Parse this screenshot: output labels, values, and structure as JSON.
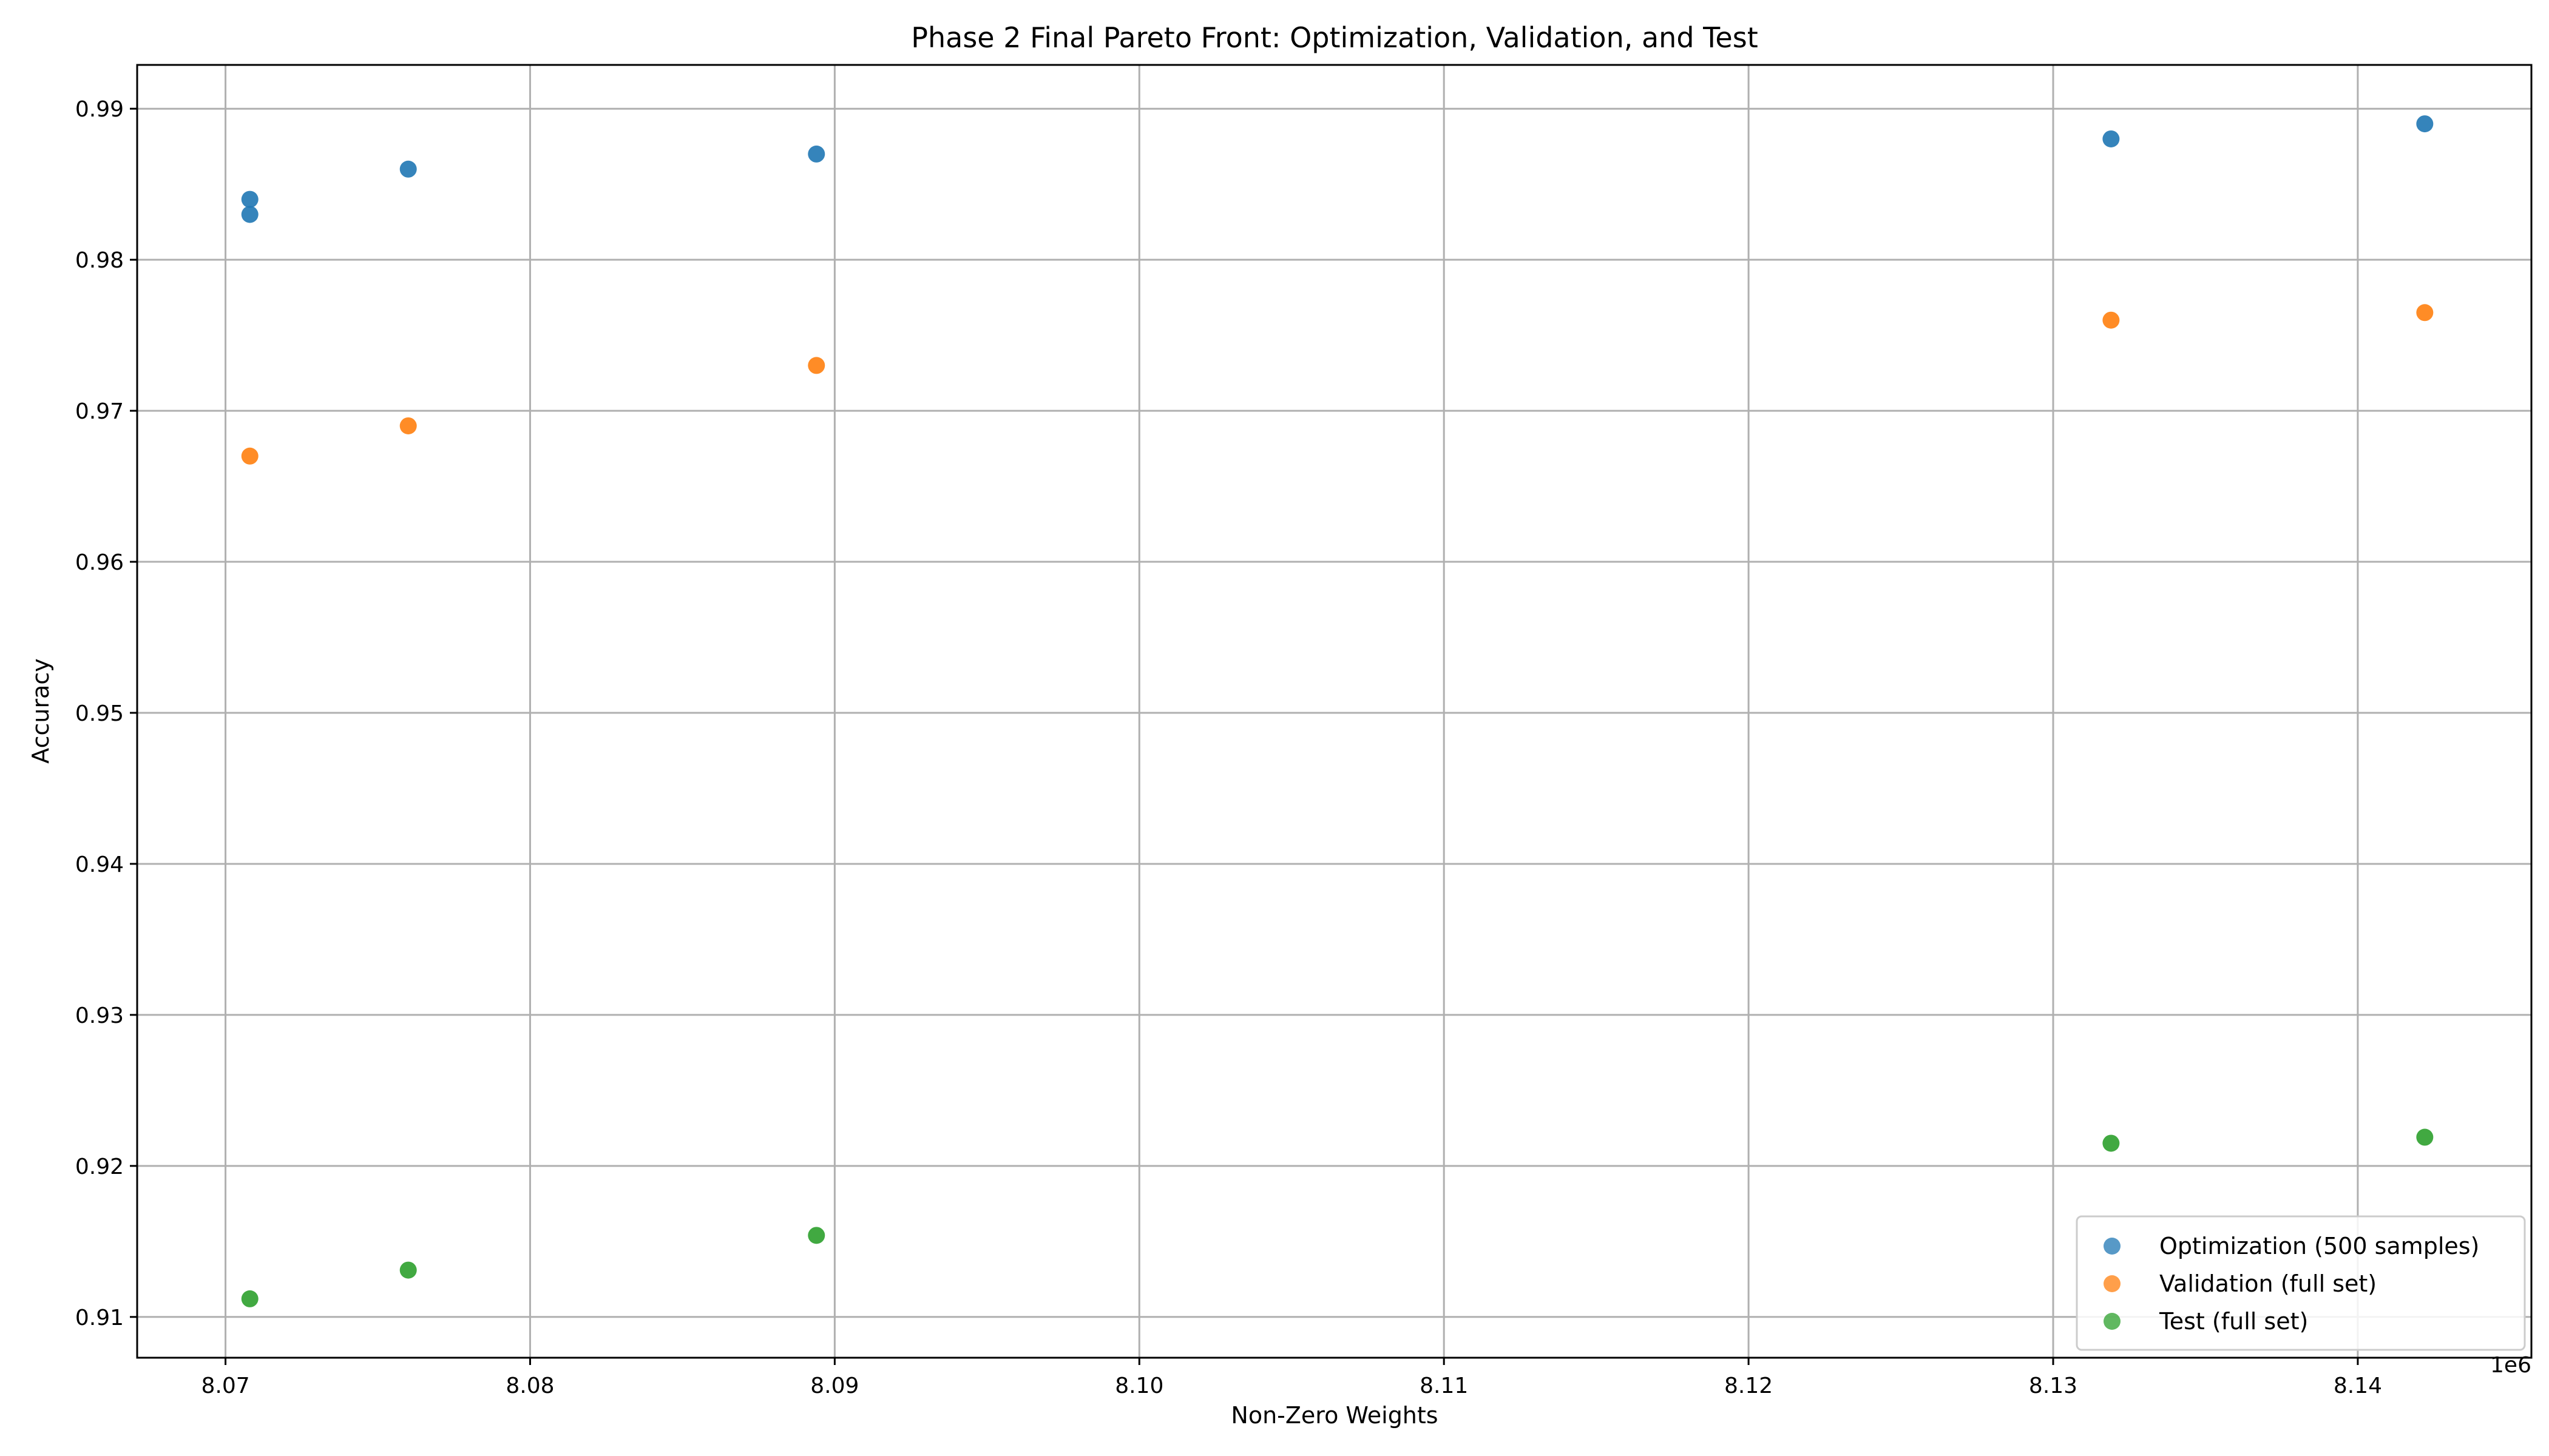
{
  "chart_data": {
    "type": "scatter",
    "title": "Phase 2 Final Pareto Front: Optimization, Validation, and Test",
    "xlabel": "Non-Zero Weights",
    "ylabel": "Accuracy",
    "x_offset_label": "1e6",
    "xlim": [
      8.0671,
      8.1457
    ],
    "ylim": [
      0.9073,
      0.9929
    ],
    "x_ticks": [
      8.07,
      8.08,
      8.09,
      8.1,
      8.11,
      8.12,
      8.13,
      8.14
    ],
    "x_tick_labels": [
      "8.07",
      "8.08",
      "8.09",
      "8.10",
      "8.11",
      "8.12",
      "8.13",
      "8.14"
    ],
    "y_ticks": [
      0.91,
      0.92,
      0.93,
      0.94,
      0.95,
      0.96,
      0.97,
      0.98,
      0.99
    ],
    "y_tick_labels": [
      "0.91",
      "0.92",
      "0.93",
      "0.94",
      "0.95",
      "0.96",
      "0.97",
      "0.98",
      "0.99"
    ],
    "grid": true,
    "legend_position": "bottom-right",
    "series": [
      {
        "name": "Optimization (500 samples)",
        "color": "#1f77b4",
        "points": [
          {
            "x": 8.0708,
            "y": 0.984
          },
          {
            "x": 8.0708,
            "y": 0.983
          },
          {
            "x": 8.076,
            "y": 0.986
          },
          {
            "x": 8.0894,
            "y": 0.987
          },
          {
            "x": 8.1319,
            "y": 0.988
          },
          {
            "x": 8.1422,
            "y": 0.989
          }
        ]
      },
      {
        "name": "Validation (full set)",
        "color": "#ff7f0e",
        "points": [
          {
            "x": 8.0708,
            "y": 0.967
          },
          {
            "x": 8.076,
            "y": 0.969
          },
          {
            "x": 8.0894,
            "y": 0.973
          },
          {
            "x": 8.1319,
            "y": 0.976
          },
          {
            "x": 8.1422,
            "y": 0.9765
          }
        ]
      },
      {
        "name": "Test (full set)",
        "color": "#2ca02c",
        "points": [
          {
            "x": 8.0708,
            "y": 0.9112
          },
          {
            "x": 8.076,
            "y": 0.9131
          },
          {
            "x": 8.0894,
            "y": 0.9154
          },
          {
            "x": 8.1319,
            "y": 0.9215
          },
          {
            "x": 8.1422,
            "y": 0.9219
          }
        ]
      }
    ]
  }
}
